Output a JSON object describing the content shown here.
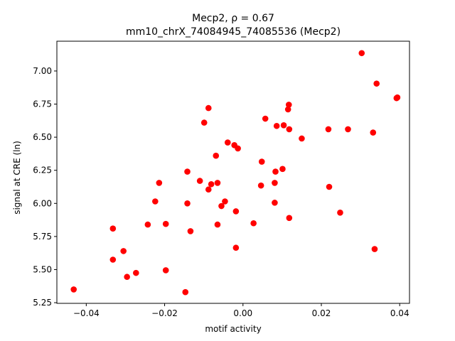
{
  "chart_data": {
    "type": "scatter",
    "title_line1": "Mecp2, ρ = 0.67",
    "title_line2": "mm10_chrX_74084945_74085536 (Mecp2)",
    "xlabel": "motif activity",
    "ylabel": "signal at CRE (ln)",
    "xlim": [
      -0.0475,
      0.0425
    ],
    "ylim": [
      5.245,
      7.225
    ],
    "xticks": [
      -0.04,
      -0.02,
      0.0,
      0.02,
      0.04
    ],
    "xtick_labels": [
      "−0.04",
      "−0.02",
      "0.00",
      "0.02",
      "0.04"
    ],
    "yticks": [
      5.25,
      5.5,
      5.75,
      6.0,
      6.25,
      6.5,
      6.75,
      7.0
    ],
    "ytick_labels": [
      "5.25",
      "5.50",
      "5.75",
      "6.00",
      "6.25",
      "6.50",
      "6.75",
      "7.00"
    ],
    "marker_color": "#ff0000",
    "grid": false,
    "points": [
      [
        -0.0432,
        5.35
      ],
      [
        -0.0332,
        5.81
      ],
      [
        -0.0332,
        5.575
      ],
      [
        -0.0305,
        5.64
      ],
      [
        -0.0296,
        5.445
      ],
      [
        -0.0273,
        5.475
      ],
      [
        -0.0243,
        5.84
      ],
      [
        -0.0224,
        6.015
      ],
      [
        -0.0214,
        6.155
      ],
      [
        -0.0197,
        5.845
      ],
      [
        -0.0197,
        5.495
      ],
      [
        -0.0147,
        5.33
      ],
      [
        -0.0142,
        6.24
      ],
      [
        -0.0142,
        6.0
      ],
      [
        -0.0134,
        5.79
      ],
      [
        -0.011,
        6.17
      ],
      [
        -0.0099,
        6.61
      ],
      [
        -0.0088,
        6.72
      ],
      [
        -0.0088,
        6.105
      ],
      [
        -0.0081,
        6.145
      ],
      [
        -0.0069,
        6.36
      ],
      [
        -0.0065,
        6.155
      ],
      [
        -0.0065,
        5.84
      ],
      [
        -0.0055,
        5.98
      ],
      [
        -0.0046,
        6.015
      ],
      [
        -0.0039,
        6.46
      ],
      [
        -0.0022,
        6.44
      ],
      [
        -0.0018,
        5.94
      ],
      [
        -0.0018,
        5.665
      ],
      [
        -0.0013,
        6.415
      ],
      [
        0.0027,
        5.85
      ],
      [
        0.0046,
        6.135
      ],
      [
        0.0048,
        6.315
      ],
      [
        0.0057,
        6.64
      ],
      [
        0.0081,
        6.005
      ],
      [
        0.0081,
        6.155
      ],
      [
        0.0083,
        6.24
      ],
      [
        0.0086,
        6.585
      ],
      [
        0.0101,
        6.26
      ],
      [
        0.0104,
        6.59
      ],
      [
        0.0115,
        6.71
      ],
      [
        0.0117,
        6.745
      ],
      [
        0.0118,
        6.56
      ],
      [
        0.0118,
        5.89
      ],
      [
        0.015,
        6.49
      ],
      [
        0.0218,
        6.56
      ],
      [
        0.022,
        6.125
      ],
      [
        0.0248,
        5.93
      ],
      [
        0.0268,
        6.56
      ],
      [
        0.0303,
        7.135
      ],
      [
        0.0332,
        6.535
      ],
      [
        0.0336,
        5.655
      ],
      [
        0.0341,
        6.905
      ],
      [
        0.0392,
        6.795
      ],
      [
        0.0394,
        6.8
      ]
    ]
  }
}
